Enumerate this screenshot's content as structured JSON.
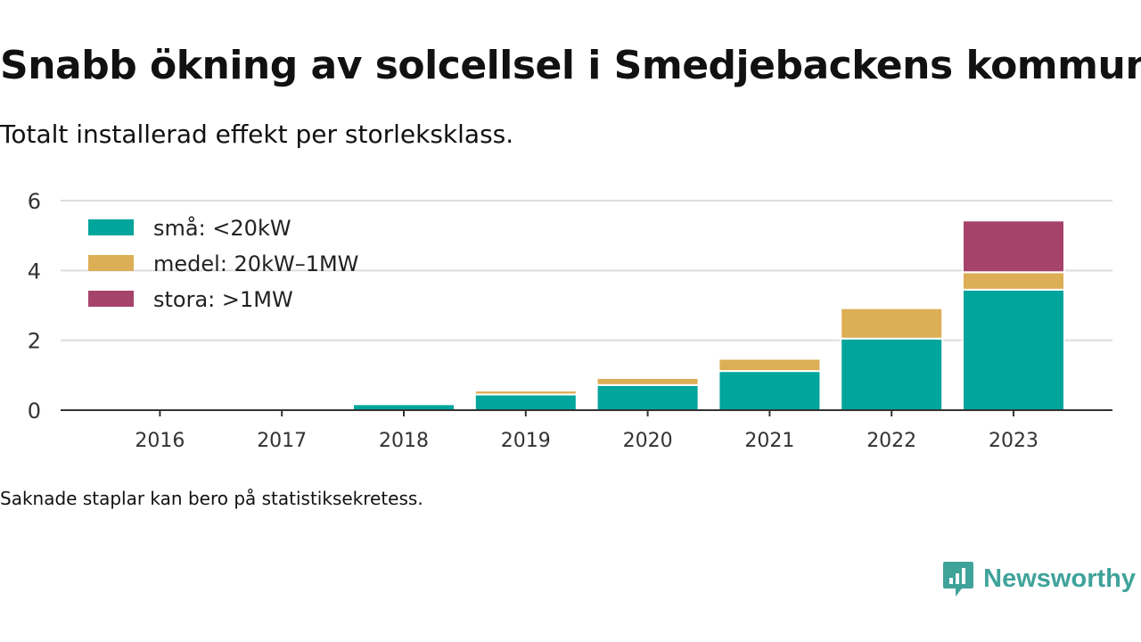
{
  "title": "Snabb ökning av solcellsel i Smedjebackens kommun",
  "subtitle": "Totalt installerad effekt per storleksklass.",
  "note": "Saknade staplar kan bero på statistiksekretess.",
  "brand": {
    "name": "Newsworthy",
    "icon": "newsworthy-logo-icon",
    "color": "#3fa39a"
  },
  "chart_data": {
    "type": "bar",
    "stacked": true,
    "categories": [
      "2016",
      "2017",
      "2018",
      "2019",
      "2020",
      "2021",
      "2022",
      "2023"
    ],
    "series": [
      {
        "name": "små: <20kW",
        "color": "#00a59b",
        "values": [
          0,
          0,
          0.17,
          0.45,
          0.72,
          1.12,
          2.05,
          3.45
        ]
      },
      {
        "name": "medel: 20kW–1MW",
        "color": "#dcae55",
        "values": [
          0,
          0,
          0,
          0.11,
          0.2,
          0.35,
          0.87,
          0.5
        ]
      },
      {
        "name": "stora: >1MW",
        "color": "#a6436b",
        "values": [
          0,
          0,
          0,
          0,
          0,
          0,
          0,
          1.48
        ]
      }
    ],
    "ylim": [
      0,
      6
    ],
    "yticks": [
      0,
      2,
      4,
      6
    ],
    "grid": true,
    "legend": "top-left"
  }
}
